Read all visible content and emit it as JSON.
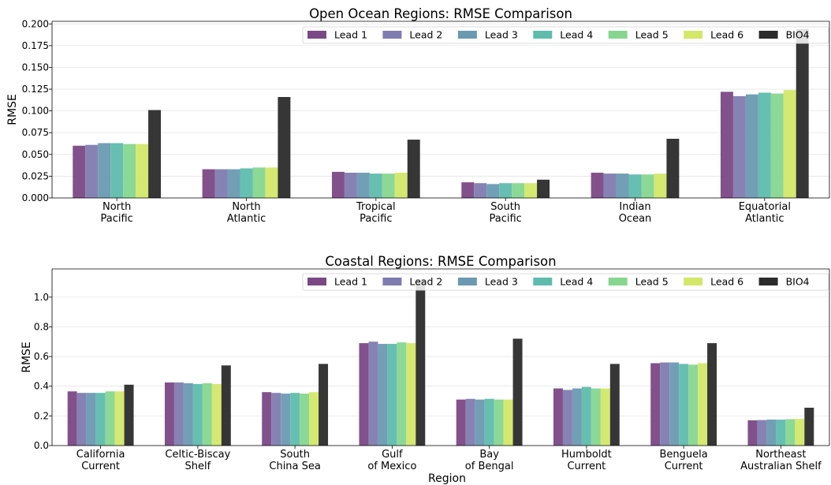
{
  "colors": {
    "Lead 1": "#7b4886",
    "Lead 2": "#7f7cb0",
    "Lead 3": "#6a9ab2",
    "Lead 4": "#5fbcad",
    "Lead 5": "#86d690",
    "Lead 6": "#d3e76a",
    "BIO4": "#2b2b2b"
  },
  "chart_data": [
    {
      "type": "bar",
      "title": "Open Ocean Regions: RMSE Comparison",
      "xlabel": "",
      "ylabel": "RMSE",
      "ylim": [
        0,
        0.203
      ],
      "yticks": [
        "0.000",
        "0.025",
        "0.050",
        "0.075",
        "0.100",
        "0.125",
        "0.150",
        "0.175",
        "0.200"
      ],
      "grid": "horizontal",
      "legend": "top-right",
      "categories": [
        [
          "North",
          "Pacific"
        ],
        [
          "North",
          "Atlantic"
        ],
        [
          "Tropical",
          "Pacific"
        ],
        [
          "South",
          "Pacific"
        ],
        [
          "Indian",
          "Ocean"
        ],
        [
          "Equatorial",
          "Atlantic"
        ]
      ],
      "series": [
        {
          "name": "Lead 1",
          "values": [
            0.06,
            0.033,
            0.03,
            0.018,
            0.029,
            0.122
          ]
        },
        {
          "name": "Lead 2",
          "values": [
            0.061,
            0.033,
            0.029,
            0.017,
            0.028,
            0.117
          ]
        },
        {
          "name": "Lead 3",
          "values": [
            0.063,
            0.033,
            0.029,
            0.016,
            0.028,
            0.119
          ]
        },
        {
          "name": "Lead 4",
          "values": [
            0.063,
            0.034,
            0.028,
            0.017,
            0.027,
            0.121
          ]
        },
        {
          "name": "Lead 5",
          "values": [
            0.062,
            0.035,
            0.028,
            0.017,
            0.027,
            0.12
          ]
        },
        {
          "name": "Lead 6",
          "values": [
            0.062,
            0.035,
            0.029,
            0.017,
            0.028,
            0.124
          ]
        },
        {
          "name": "BIO4",
          "values": [
            0.101,
            0.116,
            0.067,
            0.021,
            0.068,
            0.194
          ]
        }
      ]
    },
    {
      "type": "bar",
      "title": "Coastal Regions: RMSE Comparison",
      "xlabel": "Region",
      "ylabel": "RMSE",
      "ylim": [
        0,
        1.19
      ],
      "yticks": [
        "0.0",
        "0.2",
        "0.4",
        "0.6",
        "0.8",
        "1.0"
      ],
      "grid": "horizontal",
      "legend": "top-right",
      "categories": [
        [
          "California",
          "Current"
        ],
        [
          "Celtic-Biscay",
          "Shelf"
        ],
        [
          "South",
          "China Sea"
        ],
        [
          "Gulf",
          "of Mexico"
        ],
        [
          "Bay",
          "of Bengal"
        ],
        [
          "Humboldt",
          "Current"
        ],
        [
          "Benguela",
          "Current"
        ],
        [
          "Northeast",
          "Australian Shelf"
        ]
      ],
      "series": [
        {
          "name": "Lead 1",
          "values": [
            0.365,
            0.425,
            0.36,
            0.69,
            0.31,
            0.385,
            0.555,
            0.17
          ]
        },
        {
          "name": "Lead 2",
          "values": [
            0.355,
            0.425,
            0.355,
            0.7,
            0.315,
            0.375,
            0.56,
            0.172
          ]
        },
        {
          "name": "Lead 3",
          "values": [
            0.355,
            0.42,
            0.35,
            0.685,
            0.31,
            0.385,
            0.56,
            0.175
          ]
        },
        {
          "name": "Lead 4",
          "values": [
            0.355,
            0.415,
            0.355,
            0.685,
            0.315,
            0.395,
            0.55,
            0.175
          ]
        },
        {
          "name": "Lead 5",
          "values": [
            0.365,
            0.42,
            0.35,
            0.695,
            0.31,
            0.385,
            0.545,
            0.178
          ]
        },
        {
          "name": "Lead 6",
          "values": [
            0.365,
            0.415,
            0.36,
            0.69,
            0.31,
            0.385,
            0.555,
            0.18
          ]
        },
        {
          "name": "BIO4",
          "values": [
            0.41,
            0.54,
            0.55,
            1.12,
            0.72,
            0.55,
            0.69,
            0.255
          ]
        }
      ]
    }
  ]
}
